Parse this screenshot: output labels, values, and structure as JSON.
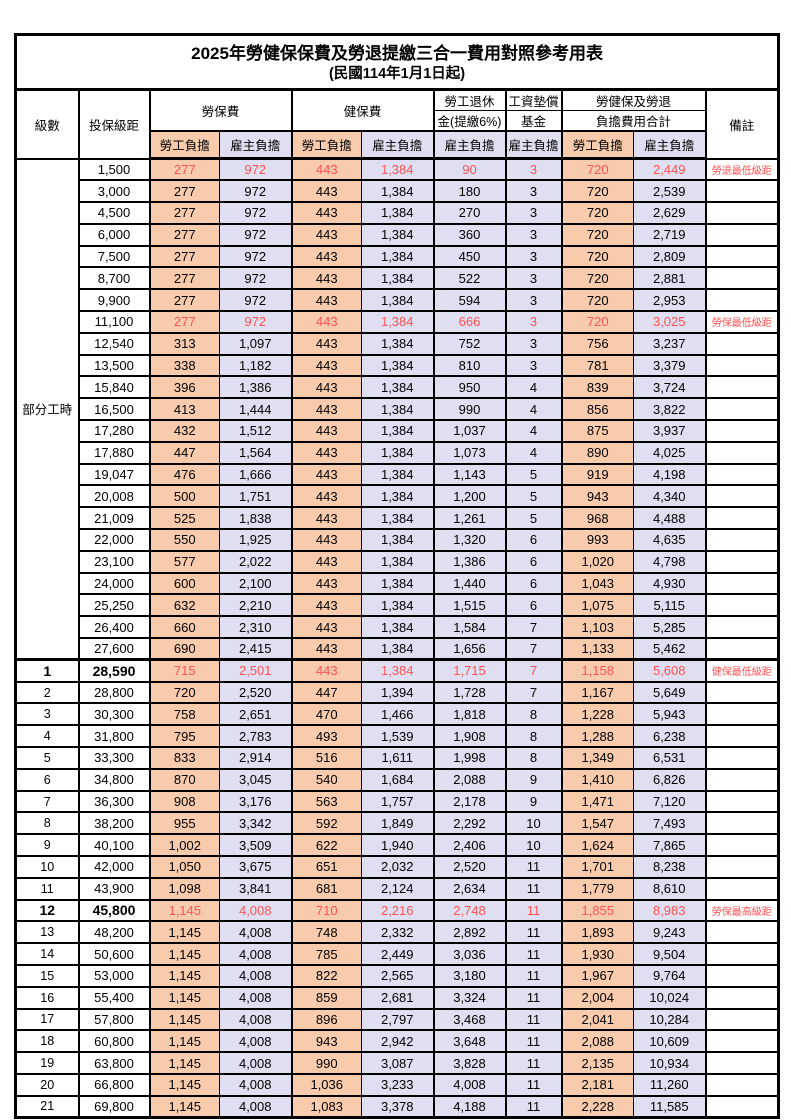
{
  "title": "2025年勞健保保費及勞退提繳三合一費用對照參考用表",
  "subtitle": "(民國114年1月1日起)",
  "header": {
    "level": "級數",
    "bracket": "投保級距",
    "labor_insurance": "勞保費",
    "health_insurance": "健保費",
    "pension_line1": "勞工退休",
    "pension_line2": "金(提繳6%)",
    "wage_fund_line1": "工資墊償",
    "wage_fund_line2": "基金",
    "total_line1": "勞健保及勞退",
    "total_line2": "負擔費用合計",
    "remark": "備註",
    "employee_share": "勞工負擔",
    "employer_share": "雇主負擔"
  },
  "part_time_label": "部分工時",
  "part_time_row_count": 23,
  "colors": {
    "employee_bg": "#F8CBAD",
    "employer_bg": "#E0DFF1",
    "highlight_text": "#FF5252"
  },
  "rows": [
    {
      "level": "",
      "bracket": "1,500",
      "values": [
        "277",
        "972",
        "443",
        "1,384",
        "90",
        "3",
        "720",
        "2,449"
      ],
      "remark": "勞退最低級距",
      "highlight": true
    },
    {
      "level": "",
      "bracket": "3,000",
      "values": [
        "277",
        "972",
        "443",
        "1,384",
        "180",
        "3",
        "720",
        "2,539"
      ],
      "remark": ""
    },
    {
      "level": "",
      "bracket": "4,500",
      "values": [
        "277",
        "972",
        "443",
        "1,384",
        "270",
        "3",
        "720",
        "2,629"
      ],
      "remark": ""
    },
    {
      "level": "",
      "bracket": "6,000",
      "values": [
        "277",
        "972",
        "443",
        "1,384",
        "360",
        "3",
        "720",
        "2,719"
      ],
      "remark": ""
    },
    {
      "level": "",
      "bracket": "7,500",
      "values": [
        "277",
        "972",
        "443",
        "1,384",
        "450",
        "3",
        "720",
        "2,809"
      ],
      "remark": ""
    },
    {
      "level": "",
      "bracket": "8,700",
      "values": [
        "277",
        "972",
        "443",
        "1,384",
        "522",
        "3",
        "720",
        "2,881"
      ],
      "remark": ""
    },
    {
      "level": "",
      "bracket": "9,900",
      "values": [
        "277",
        "972",
        "443",
        "1,384",
        "594",
        "3",
        "720",
        "2,953"
      ],
      "remark": ""
    },
    {
      "level": "",
      "bracket": "11,100",
      "values": [
        "277",
        "972",
        "443",
        "1,384",
        "666",
        "3",
        "720",
        "3,025"
      ],
      "remark": "勞保最低級距",
      "highlight": true
    },
    {
      "level": "",
      "bracket": "12,540",
      "values": [
        "313",
        "1,097",
        "443",
        "1,384",
        "752",
        "3",
        "756",
        "3,237"
      ],
      "remark": ""
    },
    {
      "level": "",
      "bracket": "13,500",
      "values": [
        "338",
        "1,182",
        "443",
        "1,384",
        "810",
        "3",
        "781",
        "3,379"
      ],
      "remark": ""
    },
    {
      "level": "",
      "bracket": "15,840",
      "values": [
        "396",
        "1,386",
        "443",
        "1,384",
        "950",
        "4",
        "839",
        "3,724"
      ],
      "remark": ""
    },
    {
      "level": "",
      "bracket": "16,500",
      "values": [
        "413",
        "1,444",
        "443",
        "1,384",
        "990",
        "4",
        "856",
        "3,822"
      ],
      "remark": ""
    },
    {
      "level": "",
      "bracket": "17,280",
      "values": [
        "432",
        "1,512",
        "443",
        "1,384",
        "1,037",
        "4",
        "875",
        "3,937"
      ],
      "remark": ""
    },
    {
      "level": "",
      "bracket": "17,880",
      "values": [
        "447",
        "1,564",
        "443",
        "1,384",
        "1,073",
        "4",
        "890",
        "4,025"
      ],
      "remark": ""
    },
    {
      "level": "",
      "bracket": "19,047",
      "values": [
        "476",
        "1,666",
        "443",
        "1,384",
        "1,143",
        "5",
        "919",
        "4,198"
      ],
      "remark": ""
    },
    {
      "level": "",
      "bracket": "20,008",
      "values": [
        "500",
        "1,751",
        "443",
        "1,384",
        "1,200",
        "5",
        "943",
        "4,340"
      ],
      "remark": ""
    },
    {
      "level": "",
      "bracket": "21,009",
      "values": [
        "525",
        "1,838",
        "443",
        "1,384",
        "1,261",
        "5",
        "968",
        "4,488"
      ],
      "remark": ""
    },
    {
      "level": "",
      "bracket": "22,000",
      "values": [
        "550",
        "1,925",
        "443",
        "1,384",
        "1,320",
        "6",
        "993",
        "4,635"
      ],
      "remark": ""
    },
    {
      "level": "",
      "bracket": "23,100",
      "values": [
        "577",
        "2,022",
        "443",
        "1,384",
        "1,386",
        "6",
        "1,020",
        "4,798"
      ],
      "remark": ""
    },
    {
      "level": "",
      "bracket": "24,000",
      "values": [
        "600",
        "2,100",
        "443",
        "1,384",
        "1,440",
        "6",
        "1,043",
        "4,930"
      ],
      "remark": ""
    },
    {
      "level": "",
      "bracket": "25,250",
      "values": [
        "632",
        "2,210",
        "443",
        "1,384",
        "1,515",
        "6",
        "1,075",
        "5,115"
      ],
      "remark": ""
    },
    {
      "level": "",
      "bracket": "26,400",
      "values": [
        "660",
        "2,310",
        "443",
        "1,384",
        "1,584",
        "7",
        "1,103",
        "5,285"
      ],
      "remark": ""
    },
    {
      "level": "",
      "bracket": "27,600",
      "values": [
        "690",
        "2,415",
        "443",
        "1,384",
        "1,656",
        "7",
        "1,133",
        "5,462"
      ],
      "remark": ""
    },
    {
      "level": "1",
      "bracket": "28,590",
      "values": [
        "715",
        "2,501",
        "443",
        "1,384",
        "1,715",
        "7",
        "1,158",
        "5,608"
      ],
      "remark": "健保最低級距",
      "highlight": true,
      "emphasis": true
    },
    {
      "level": "2",
      "bracket": "28,800",
      "values": [
        "720",
        "2,520",
        "447",
        "1,394",
        "1,728",
        "7",
        "1,167",
        "5,649"
      ],
      "remark": ""
    },
    {
      "level": "3",
      "bracket": "30,300",
      "values": [
        "758",
        "2,651",
        "470",
        "1,466",
        "1,818",
        "8",
        "1,228",
        "5,943"
      ],
      "remark": ""
    },
    {
      "level": "4",
      "bracket": "31,800",
      "values": [
        "795",
        "2,783",
        "493",
        "1,539",
        "1,908",
        "8",
        "1,288",
        "6,238"
      ],
      "remark": ""
    },
    {
      "level": "5",
      "bracket": "33,300",
      "values": [
        "833",
        "2,914",
        "516",
        "1,611",
        "1,998",
        "8",
        "1,349",
        "6,531"
      ],
      "remark": ""
    },
    {
      "level": "6",
      "bracket": "34,800",
      "values": [
        "870",
        "3,045",
        "540",
        "1,684",
        "2,088",
        "9",
        "1,410",
        "6,826"
      ],
      "remark": ""
    },
    {
      "level": "7",
      "bracket": "36,300",
      "values": [
        "908",
        "3,176",
        "563",
        "1,757",
        "2,178",
        "9",
        "1,471",
        "7,120"
      ],
      "remark": ""
    },
    {
      "level": "8",
      "bracket": "38,200",
      "values": [
        "955",
        "3,342",
        "592",
        "1,849",
        "2,292",
        "10",
        "1,547",
        "7,493"
      ],
      "remark": ""
    },
    {
      "level": "9",
      "bracket": "40,100",
      "values": [
        "1,002",
        "3,509",
        "622",
        "1,940",
        "2,406",
        "10",
        "1,624",
        "7,865"
      ],
      "remark": ""
    },
    {
      "level": "10",
      "bracket": "42,000",
      "values": [
        "1,050",
        "3,675",
        "651",
        "2,032",
        "2,520",
        "11",
        "1,701",
        "8,238"
      ],
      "remark": ""
    },
    {
      "level": "11",
      "bracket": "43,900",
      "values": [
        "1,098",
        "3,841",
        "681",
        "2,124",
        "2,634",
        "11",
        "1,779",
        "8,610"
      ],
      "remark": ""
    },
    {
      "level": "12",
      "bracket": "45,800",
      "values": [
        "1,145",
        "4,008",
        "710",
        "2,216",
        "2,748",
        "11",
        "1,855",
        "8,983"
      ],
      "remark": "勞保最高級距",
      "highlight": true,
      "emphasis": true
    },
    {
      "level": "13",
      "bracket": "48,200",
      "values": [
        "1,145",
        "4,008",
        "748",
        "2,332",
        "2,892",
        "11",
        "1,893",
        "9,243"
      ],
      "remark": ""
    },
    {
      "level": "14",
      "bracket": "50,600",
      "values": [
        "1,145",
        "4,008",
        "785",
        "2,449",
        "3,036",
        "11",
        "1,930",
        "9,504"
      ],
      "remark": ""
    },
    {
      "level": "15",
      "bracket": "53,000",
      "values": [
        "1,145",
        "4,008",
        "822",
        "2,565",
        "3,180",
        "11",
        "1,967",
        "9,764"
      ],
      "remark": ""
    },
    {
      "level": "16",
      "bracket": "55,400",
      "values": [
        "1,145",
        "4,008",
        "859",
        "2,681",
        "3,324",
        "11",
        "2,004",
        "10,024"
      ],
      "remark": ""
    },
    {
      "level": "17",
      "bracket": "57,800",
      "values": [
        "1,145",
        "4,008",
        "896",
        "2,797",
        "3,468",
        "11",
        "2,041",
        "10,284"
      ],
      "remark": ""
    },
    {
      "level": "18",
      "bracket": "60,800",
      "values": [
        "1,145",
        "4,008",
        "943",
        "2,942",
        "3,648",
        "11",
        "2,088",
        "10,609"
      ],
      "remark": ""
    },
    {
      "level": "19",
      "bracket": "63,800",
      "values": [
        "1,145",
        "4,008",
        "990",
        "3,087",
        "3,828",
        "11",
        "2,135",
        "10,934"
      ],
      "remark": ""
    },
    {
      "level": "20",
      "bracket": "66,800",
      "values": [
        "1,145",
        "4,008",
        "1,036",
        "3,233",
        "4,008",
        "11",
        "2,181",
        "11,260"
      ],
      "remark": ""
    },
    {
      "level": "21",
      "bracket": "69,800",
      "values": [
        "1,145",
        "4,008",
        "1,083",
        "3,378",
        "4,188",
        "11",
        "2,228",
        "11,585"
      ],
      "remark": ""
    }
  ]
}
